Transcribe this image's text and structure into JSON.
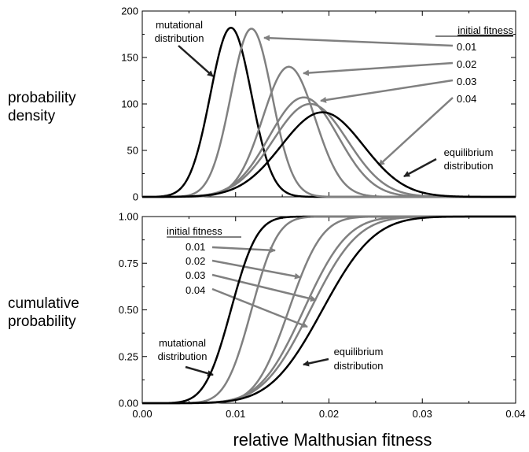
{
  "chart_data": [
    {
      "type": "line",
      "panel": "top",
      "ylabel": [
        "probability",
        "density"
      ],
      "xlim": [
        0,
        0.04
      ],
      "ylim": [
        0,
        200
      ],
      "yticks": [
        "0",
        "50",
        "100",
        "150",
        "200"
      ],
      "legend_title": "initial fitness",
      "series": [
        {
          "name": "mutational distribution",
          "color": "#000000",
          "mean": 0.0095,
          "sd": 0.0022,
          "peak": 182
        },
        {
          "name": "0.01",
          "color": "#808080",
          "mean": 0.0117,
          "sd": 0.0022,
          "peak": 181
        },
        {
          "name": "0.02",
          "color": "#808080",
          "mean": 0.0157,
          "sd": 0.0028,
          "peak": 140
        },
        {
          "name": "0.03",
          "color": "#808080",
          "mean": 0.0173,
          "sd": 0.0037,
          "peak": 107
        },
        {
          "name": "0.04",
          "color": "#808080",
          "mean": 0.018,
          "sd": 0.004,
          "peak": 100
        },
        {
          "name": "equilibrium distribution",
          "color": "#000000",
          "mean": 0.0193,
          "sd": 0.0044,
          "peak": 91
        }
      ],
      "annotations": [
        {
          "text": [
            "mutational",
            "distribution"
          ]
        },
        {
          "text": [
            "equilibrium",
            "distribution"
          ]
        }
      ]
    },
    {
      "type": "line",
      "panel": "bottom",
      "ylabel": [
        "cumulative",
        "probability"
      ],
      "xlabel": "relative Malthusian fitness",
      "xlim": [
        0,
        0.04
      ],
      "ylim": [
        0,
        1
      ],
      "xticks": [
        "0.00",
        "0.01",
        "0.02",
        "0.03",
        "0.04"
      ],
      "yticks": [
        "0.00",
        "0.25",
        "0.50",
        "0.75",
        "1.00"
      ],
      "legend_title": "initial fitness",
      "series_labels": [
        "0.01",
        "0.02",
        "0.03",
        "0.04"
      ],
      "annotations": [
        {
          "text": [
            "mutational",
            "distribution"
          ]
        },
        {
          "text": [
            "equilibrium",
            "distribution"
          ]
        }
      ]
    }
  ]
}
